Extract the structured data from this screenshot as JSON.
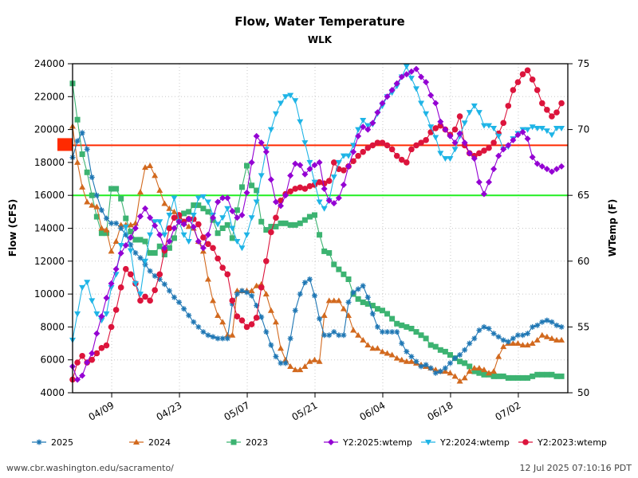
{
  "chart_data": {
    "type": "line",
    "title": "Flow, Water Temperature",
    "subtitle": "WLK",
    "xlabel": "",
    "ylabel": "Flow (CFS)",
    "y2label": "WTemp (F)",
    "ylim": [
      4000,
      24000
    ],
    "y2lim": [
      50,
      75
    ],
    "xlim": [
      "04/01",
      "07/12"
    ],
    "x_start": "04/01",
    "x_step_days": 1,
    "grid": true,
    "yticks": [
      "4000",
      "6000",
      "8000",
      "10000",
      "12000",
      "14000",
      "16000",
      "18000",
      "20000",
      "22000",
      "24000"
    ],
    "y2ticks": [
      "50",
      "55",
      "60",
      "65",
      "70",
      "75"
    ],
    "xticks": [
      {
        "label": "04/09",
        "day": 8
      },
      {
        "label": "04/23",
        "day": 22
      },
      {
        "label": "05/07",
        "day": 36
      },
      {
        "label": "05/21",
        "day": 50
      },
      {
        "label": "06/04",
        "day": 64
      },
      {
        "label": "06/18",
        "day": 78
      },
      {
        "label": "07/02",
        "day": 92
      }
    ],
    "reference_lines": [
      {
        "name": "temp-threshold-68.8",
        "axis": "y2",
        "value": 68.8,
        "color": "#ff2a00"
      },
      {
        "name": "temp-threshold-65",
        "axis": "y2",
        "value": 65.0,
        "color": "#22ee22"
      }
    ],
    "series": [
      {
        "name": "2025",
        "axis": "y",
        "color": "#1f77b4",
        "marker": "star",
        "values": [
          18300,
          19300,
          19800,
          18800,
          17100,
          16000,
          15100,
          14600,
          14300,
          14300,
          14000,
          13600,
          13000,
          12500,
          12200,
          11800,
          11400,
          11100,
          10900,
          10600,
          10200,
          9800,
          9500,
          9100,
          8700,
          8300,
          8000,
          7700,
          7500,
          7400,
          7300,
          7300,
          7300,
          9400,
          10000,
          10200,
          10100,
          9900,
          9300,
          8600,
          7700,
          6900,
          6200,
          5800,
          5800,
          7300,
          9000,
          10000,
          10700,
          10900,
          9900,
          8500,
          7500,
          7500,
          7700,
          7500,
          7500,
          9500,
          10100,
          10300,
          10500,
          9800,
          8800,
          8000,
          7700,
          7700,
          7700,
          7700,
          7000,
          6500,
          6200,
          5900,
          5600,
          5700,
          5500,
          5200,
          5300,
          5500,
          5800,
          6100,
          6300,
          6600,
          7000,
          7300,
          7800,
          8000,
          7900,
          7600,
          7400,
          7200,
          7100,
          7300,
          7500,
          7500,
          7600,
          8000,
          8100,
          8300,
          8400,
          8300,
          8100,
          8000
        ]
      },
      {
        "name": "2024",
        "axis": "y",
        "color": "#d2691e",
        "marker": "triangle-up",
        "values": [
          20200,
          18000,
          16500,
          15600,
          15400,
          15300,
          14000,
          13900,
          12600,
          13200,
          14200,
          14200,
          14200,
          14300,
          16200,
          17700,
          17800,
          17200,
          16300,
          15500,
          15200,
          15000,
          14700,
          14300,
          14100,
          14000,
          13200,
          12600,
          10900,
          9600,
          8700,
          8300,
          7500,
          7500,
          10200,
          10200,
          10200,
          10200,
          10500,
          10600,
          10000,
          9000,
          8300,
          6700,
          6000,
          5600,
          5400,
          5400,
          5600,
          5900,
          6000,
          5900,
          8700,
          9600,
          9600,
          9600,
          9100,
          8700,
          7800,
          7500,
          7200,
          6900,
          6700,
          6700,
          6500,
          6400,
          6300,
          6100,
          6000,
          5900,
          5900,
          5800,
          5700,
          5600,
          5500,
          5400,
          5300,
          5300,
          5200,
          5000,
          4700,
          4900,
          5300,
          5500,
          5500,
          5400,
          5200,
          5300,
          6200,
          6800,
          7000,
          7000,
          7000,
          6900,
          6900,
          7000,
          7200,
          7500,
          7400,
          7300,
          7200,
          7200
        ]
      },
      {
        "name": "2023",
        "axis": "y",
        "color": "#3cb371",
        "marker": "square",
        "values": [
          22800,
          20600,
          18500,
          17400,
          16000,
          14700,
          13700,
          13700,
          16400,
          16400,
          15800,
          14600,
          13800,
          13300,
          13300,
          13200,
          12500,
          12500,
          12900,
          12400,
          12800,
          13400,
          14500,
          14900,
          15000,
          15400,
          15400,
          15200,
          15000,
          14500,
          13700,
          14000,
          14200,
          13400,
          15100,
          16500,
          17800,
          16600,
          16300,
          14400,
          13900,
          14100,
          14100,
          14300,
          14300,
          14200,
          14200,
          14300,
          14500,
          14700,
          14800,
          13600,
          12600,
          12500,
          11800,
          11500,
          11200,
          10900,
          10000,
          9700,
          9500,
          9400,
          9300,
          9100,
          9000,
          8800,
          8500,
          8200,
          8100,
          8000,
          7900,
          7700,
          7500,
          7300,
          6900,
          6800,
          6600,
          6500,
          6300,
          6100,
          5900,
          5800,
          5600,
          5300,
          5200,
          5100,
          5100,
          5000,
          5000,
          5000,
          4900,
          4900,
          4900,
          4900,
          4900,
          5000,
          5100,
          5100,
          5100,
          5100,
          5000,
          5000
        ]
      },
      {
        "name": "Y2:2025:wtemp",
        "axis": "y2",
        "color": "#9400d3",
        "marker": "diamond",
        "values": [
          52.0,
          51.0,
          51.3,
          52.3,
          53.0,
          54.5,
          55.8,
          57.2,
          58.3,
          59.4,
          60.6,
          61.2,
          61.8,
          62.5,
          63.4,
          64.0,
          63.3,
          62.7,
          62.0,
          61.0,
          61.5,
          62.5,
          63.0,
          62.8,
          63.2,
          62.6,
          61.5,
          61.0,
          62.0,
          63.3,
          64.5,
          64.8,
          64.8,
          63.8,
          63.3,
          63.5,
          65.2,
          67.5,
          69.5,
          69.0,
          68.3,
          66.2,
          64.5,
          64.2,
          65.0,
          66.5,
          67.4,
          67.3,
          66.6,
          67.0,
          67.3,
          67.5,
          65.5,
          64.6,
          64.4,
          64.8,
          65.8,
          67.2,
          68.3,
          69.5,
          70.2,
          70.0,
          70.5,
          71.3,
          72.0,
          72.5,
          73.0,
          73.5,
          74.0,
          74.2,
          74.4,
          74.6,
          74.0,
          73.6,
          72.6,
          72.0,
          70.6,
          70.0,
          69.5,
          69.0,
          69.7,
          69.0,
          68.2,
          67.8,
          66.0,
          65.1,
          66.0,
          67.0,
          68.0,
          68.5,
          68.8,
          69.2,
          69.6,
          69.8,
          69.3,
          67.9,
          67.4,
          67.2,
          67.0,
          66.8,
          67.0,
          67.2
        ]
      },
      {
        "name": "Y2:2024:wtemp",
        "axis": "y2",
        "color": "#1eb4e6",
        "marker": "triangle-down",
        "values": [
          54.0,
          56.0,
          58.0,
          58.4,
          57.0,
          56.0,
          55.5,
          56.0,
          58.0,
          59.0,
          61.2,
          62.6,
          60.8,
          58.3,
          57.5,
          60.0,
          62.0,
          63.0,
          63.0,
          62.0,
          63.5,
          64.8,
          63.0,
          62.0,
          61.5,
          63.5,
          64.8,
          64.9,
          64.5,
          63.5,
          62.8,
          63.3,
          64.0,
          62.5,
          61.5,
          61.0,
          62.0,
          63.3,
          64.5,
          66.5,
          68.5,
          70.0,
          71.2,
          72.0,
          72.5,
          72.6,
          72.2,
          70.6,
          69.0,
          67.5,
          66.0,
          64.5,
          64.0,
          64.6,
          66.4,
          67.5,
          68.0,
          68.0,
          68.8,
          70.0,
          70.7,
          70.3,
          70.4,
          71.2,
          71.8,
          72.5,
          72.8,
          73.3,
          74.0,
          74.8,
          73.9,
          73.1,
          72.0,
          71.2,
          70.2,
          69.4,
          68.2,
          67.8,
          67.8,
          68.5,
          69.5,
          70.5,
          71.3,
          71.8,
          71.3,
          70.3,
          70.3,
          70.1,
          69.5,
          68.5,
          68.7,
          69.3,
          69.7,
          70.0,
          70.0,
          70.2,
          70.1,
          70.1,
          69.9,
          69.6,
          70.1,
          70.1
        ]
      },
      {
        "name": "Y2:2023:wtemp",
        "axis": "y2",
        "color": "#dc143c",
        "marker": "circle",
        "values": [
          51.0,
          52.3,
          52.8,
          52.3,
          52.5,
          53.0,
          53.4,
          53.6,
          55.0,
          56.3,
          58.0,
          59.4,
          59.0,
          58.3,
          57.0,
          57.3,
          57.0,
          57.8,
          59.0,
          60.8,
          62.5,
          63.3,
          63.5,
          63.0,
          63.2,
          63.2,
          62.8,
          61.8,
          61.3,
          61.0,
          60.2,
          59.5,
          59.0,
          57.0,
          55.8,
          55.5,
          55.0,
          55.2,
          55.7,
          58.0,
          60.0,
          62.2,
          63.3,
          64.6,
          65.1,
          65.3,
          65.5,
          65.6,
          65.5,
          65.7,
          65.8,
          66.0,
          65.9,
          66.1,
          67.5,
          67.0,
          66.9,
          67.2,
          67.6,
          68.0,
          68.3,
          68.6,
          68.8,
          69.0,
          69.0,
          68.8,
          68.5,
          68.0,
          67.7,
          67.5,
          68.5,
          68.8,
          69.0,
          69.2,
          69.8,
          70.1,
          70.3,
          70.0,
          69.6,
          70.0,
          71.0,
          68.8,
          68.2,
          68.0,
          68.2,
          68.4,
          68.6,
          69.0,
          69.7,
          70.5,
          71.8,
          73.0,
          73.6,
          74.2,
          74.5,
          73.8,
          73.0,
          72.0,
          71.5,
          71.0,
          71.3,
          72.0
        ]
      }
    ]
  },
  "legend": [
    {
      "label": "2025"
    },
    {
      "label": "2024"
    },
    {
      "label": "2023"
    },
    {
      "label": "Y2:2025:wtemp"
    },
    {
      "label": "Y2:2024:wtemp"
    },
    {
      "label": "Y2:2023:wtemp"
    }
  ],
  "footer": {
    "source_url": "www.cbr.washington.edu/sacramento/",
    "timestamp": "12 Jul 2025 07:10:16 PDT"
  }
}
